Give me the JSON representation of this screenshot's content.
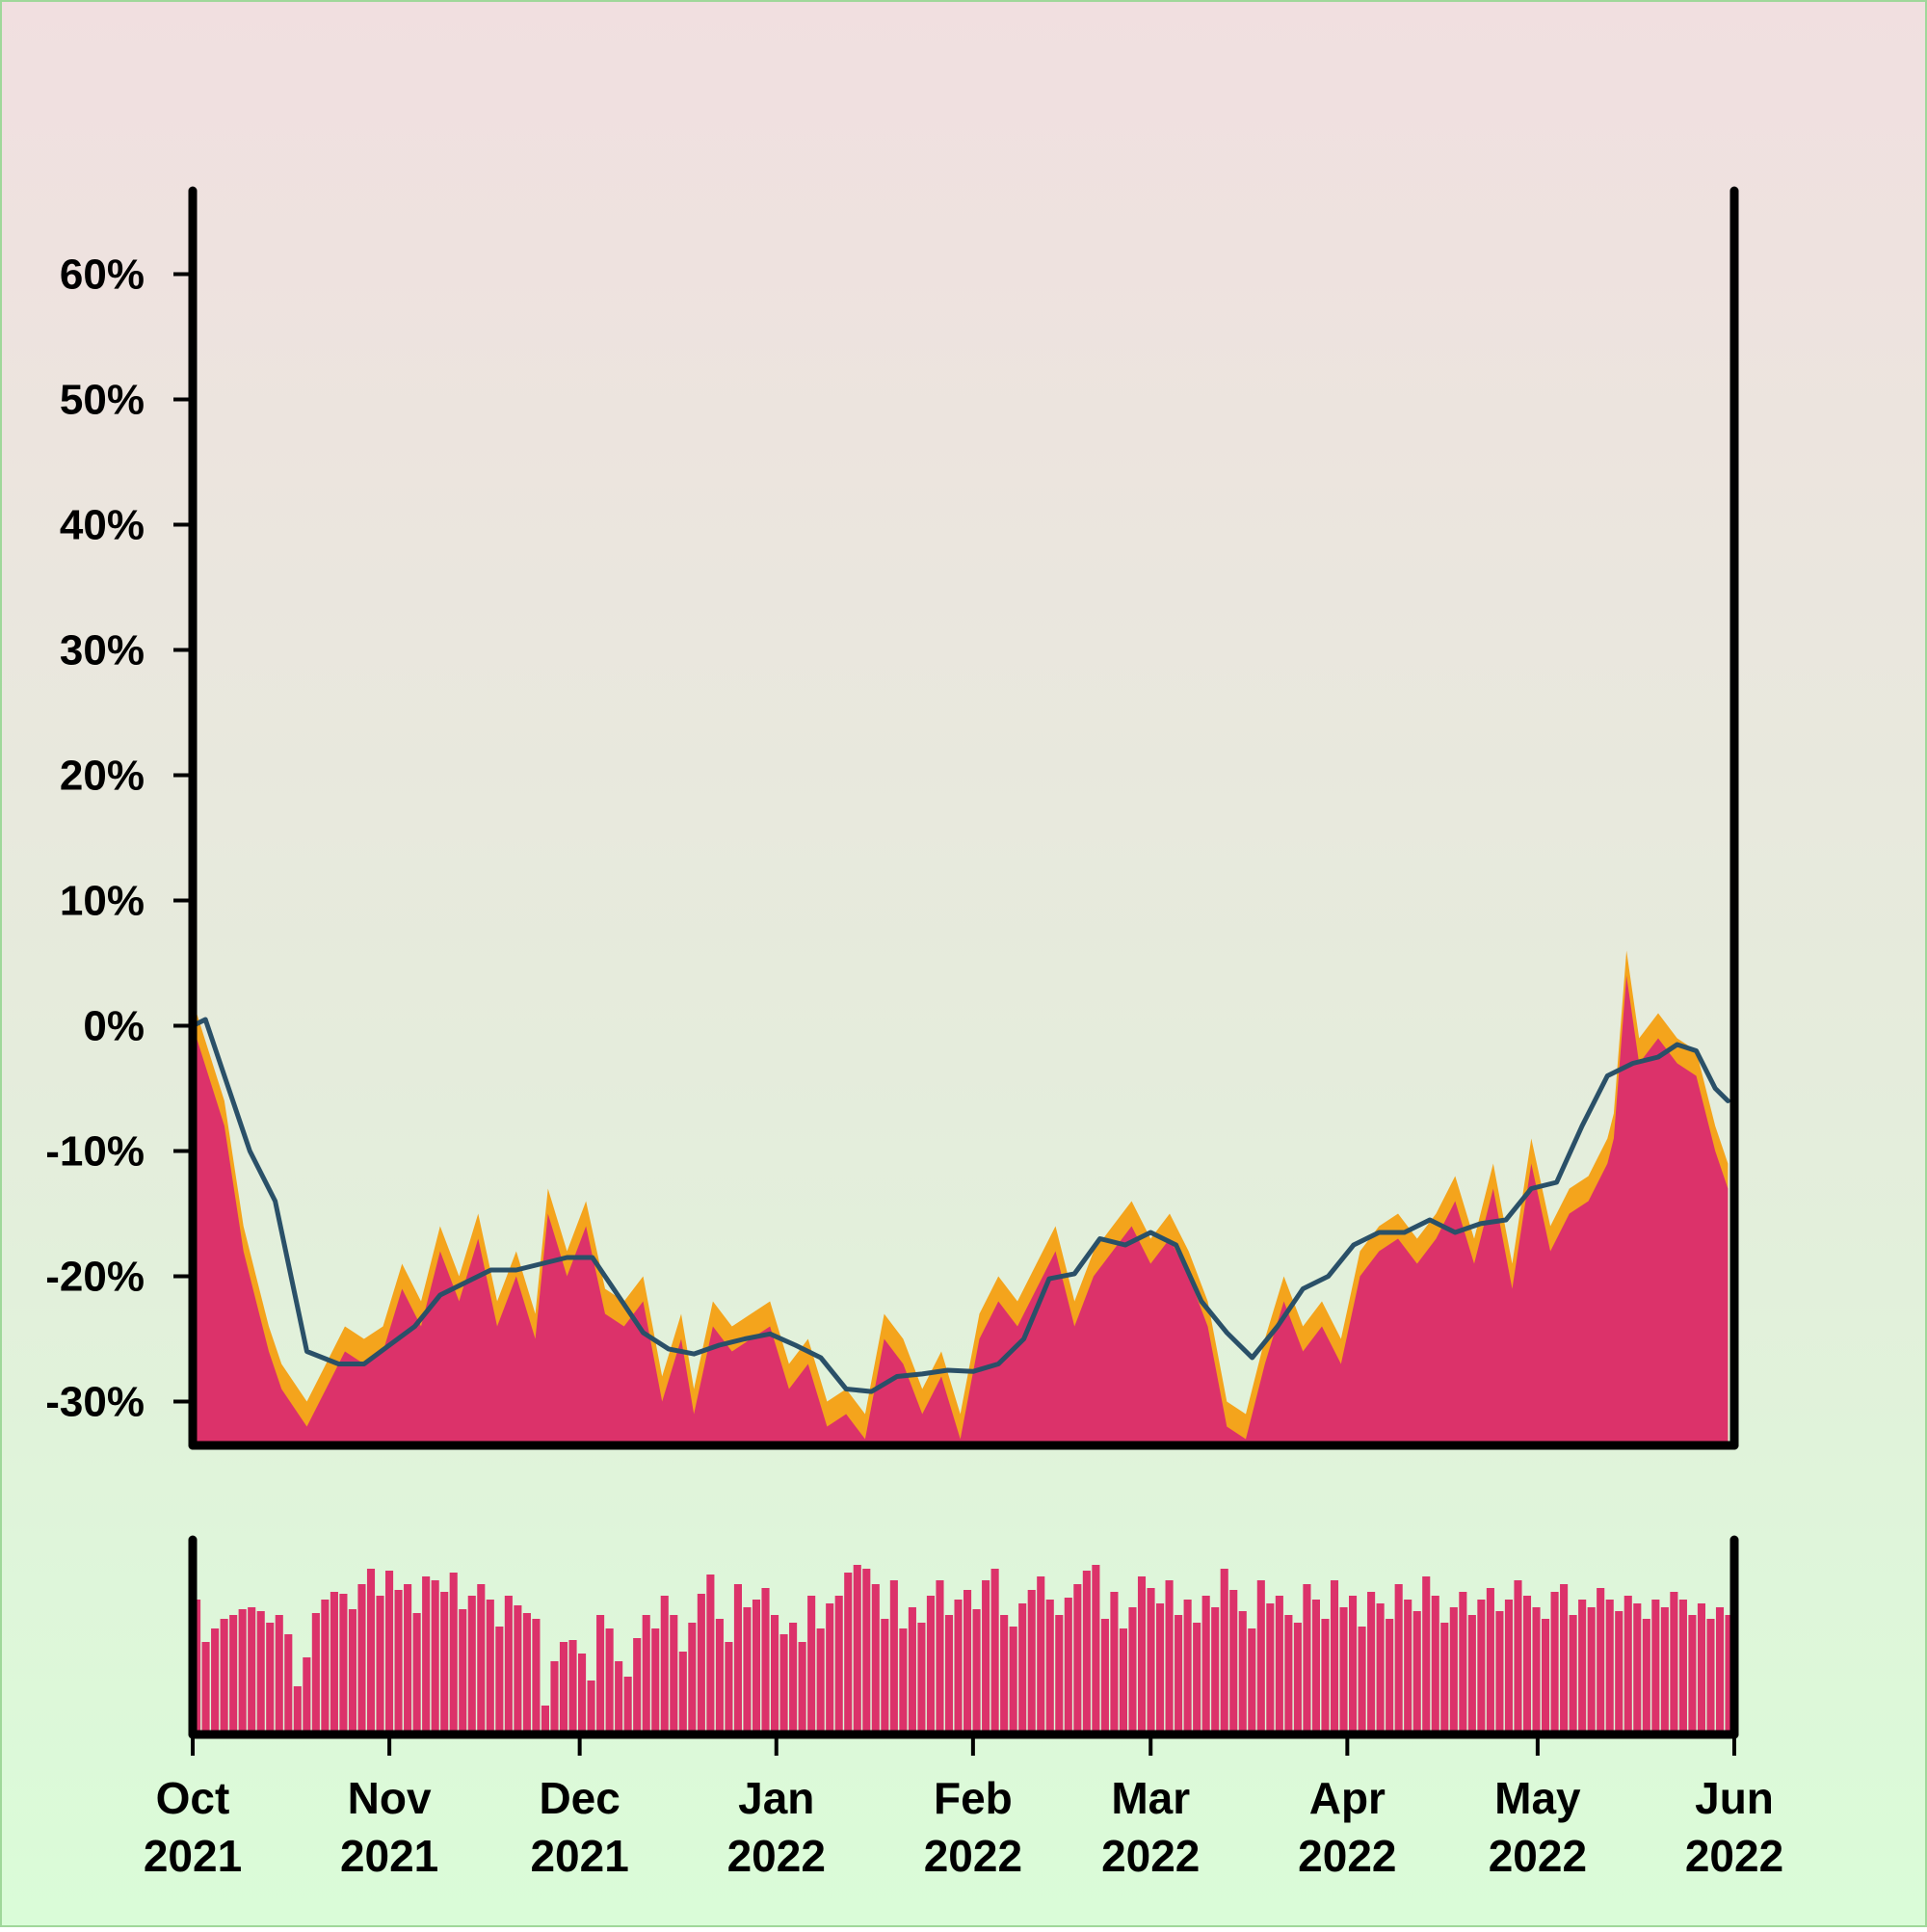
{
  "colors": {
    "fill": "#dc326a",
    "band": "#f4a41c",
    "trend": "#2a5068",
    "axis": "#000000"
  },
  "chart_data": [
    {
      "type": "area",
      "role": "main-price-panel",
      "x_range": [
        "2021-10-01",
        "2022-06-01"
      ],
      "ylim": [
        -33.5,
        66.5
      ],
      "yticks": [
        -30,
        -20,
        -10,
        0,
        10,
        20,
        30,
        40,
        50,
        60
      ],
      "ytick_labels": [
        "-30%",
        "-20%",
        "-10%",
        "0%",
        "10%",
        "20%",
        "30%",
        "40%",
        "50%",
        "60%"
      ],
      "grid": false,
      "series": [
        {
          "kind": "area-with-upper-band",
          "x": [
            "2021-10-01",
            "2021-10-06",
            "2021-10-09",
            "2021-10-11",
            "2021-10-13",
            "2021-10-15",
            "2021-10-19",
            "2021-10-22",
            "2021-10-25",
            "2021-10-28",
            "2021-10-31",
            "2021-11-03",
            "2021-11-06",
            "2021-11-09",
            "2021-11-12",
            "2021-11-15",
            "2021-11-18",
            "2021-11-21",
            "2021-11-24",
            "2021-11-26",
            "2021-11-29",
            "2021-12-02",
            "2021-12-05",
            "2021-12-08",
            "2021-12-11",
            "2021-12-14",
            "2021-12-17",
            "2021-12-19",
            "2021-12-22",
            "2021-12-25",
            "2021-12-28",
            "2021-12-31",
            "2022-01-03",
            "2022-01-06",
            "2022-01-09",
            "2022-01-12",
            "2022-01-15",
            "2022-01-18",
            "2022-01-21",
            "2022-01-24",
            "2022-01-27",
            "2022-01-30",
            "2022-02-02",
            "2022-02-05",
            "2022-02-08",
            "2022-02-11",
            "2022-02-14",
            "2022-02-17",
            "2022-02-20",
            "2022-02-23",
            "2022-02-26",
            "2022-03-01",
            "2022-03-04",
            "2022-03-07",
            "2022-03-10",
            "2022-03-13",
            "2022-03-16",
            "2022-03-19",
            "2022-03-22",
            "2022-03-25",
            "2022-03-28",
            "2022-03-31",
            "2022-04-03",
            "2022-04-06",
            "2022-04-09",
            "2022-04-12",
            "2022-04-15",
            "2022-04-18",
            "2022-04-21",
            "2022-04-24",
            "2022-04-27",
            "2022-04-30",
            "2022-05-03",
            "2022-05-06",
            "2022-05-09",
            "2022-05-12",
            "2022-05-13",
            "2022-05-15",
            "2022-05-17",
            "2022-05-20",
            "2022-05-23",
            "2022-05-26",
            "2022-05-29",
            "2022-05-31"
          ],
          "values": [
            0.0,
            -8.0,
            -18.0,
            -22.0,
            -26.0,
            -29.0,
            -32.0,
            -29.0,
            -26.0,
            -27.0,
            -26.0,
            -21.0,
            -24.0,
            -18.0,
            -22.0,
            -17.0,
            -24.0,
            -20.0,
            -25.0,
            -15.0,
            -20.0,
            -16.0,
            -23.0,
            -24.0,
            -22.0,
            -30.0,
            -25.0,
            -31.0,
            -24.0,
            -26.0,
            -25.0,
            -24.0,
            -29.0,
            -27.0,
            -32.0,
            -31.0,
            -33.0,
            -25.0,
            -27.0,
            -31.0,
            -28.0,
            -33.0,
            -25.0,
            -22.0,
            -24.0,
            -21.0,
            -18.0,
            -24.0,
            -20.0,
            -18.0,
            -16.0,
            -19.0,
            -17.0,
            -20.0,
            -24.0,
            -32.0,
            -33.0,
            -27.0,
            -22.0,
            -26.0,
            -24.0,
            -27.0,
            -20.0,
            -18.0,
            -17.0,
            -19.0,
            -17.0,
            -14.0,
            -19.0,
            -13.0,
            -21.0,
            -11.0,
            -18.0,
            -15.0,
            -14.0,
            -11.0,
            -9.0,
            4.0,
            -3.0,
            -1.0,
            -3.0,
            -4.0,
            -10.0,
            -13.0
          ],
          "band_offset": 2.0
        },
        {
          "kind": "trend-line",
          "x": [
            "2021-10-01",
            "2021-10-03",
            "2021-10-06",
            "2021-10-10",
            "2021-10-14",
            "2021-10-19",
            "2021-10-24",
            "2021-10-28",
            "2021-11-01",
            "2021-11-05",
            "2021-11-09",
            "2021-11-13",
            "2021-11-17",
            "2021-11-21",
            "2021-11-25",
            "2021-11-29",
            "2021-12-03",
            "2021-12-07",
            "2021-12-11",
            "2021-12-15",
            "2021-12-19",
            "2021-12-23",
            "2021-12-27",
            "2021-12-31",
            "2022-01-04",
            "2022-01-08",
            "2022-01-12",
            "2022-01-16",
            "2022-01-20",
            "2022-01-24",
            "2022-01-28",
            "2022-02-01",
            "2022-02-05",
            "2022-02-09",
            "2022-02-13",
            "2022-02-17",
            "2022-02-21",
            "2022-02-25",
            "2022-03-01",
            "2022-03-05",
            "2022-03-09",
            "2022-03-13",
            "2022-03-17",
            "2022-03-21",
            "2022-03-25",
            "2022-03-29",
            "2022-04-02",
            "2022-04-06",
            "2022-04-10",
            "2022-04-14",
            "2022-04-18",
            "2022-04-22",
            "2022-04-26",
            "2022-04-30",
            "2022-05-04",
            "2022-05-08",
            "2022-05-12",
            "2022-05-16",
            "2022-05-20",
            "2022-05-23",
            "2022-05-26",
            "2022-05-29",
            "2022-05-31"
          ],
          "values": [
            0.0,
            0.5,
            -4.0,
            -10.0,
            -14.0,
            -26.0,
            -27.0,
            -27.0,
            -25.5,
            -24.0,
            -21.5,
            -20.5,
            -19.5,
            -19.5,
            -19.0,
            -18.5,
            -18.5,
            -21.5,
            -24.5,
            -25.8,
            -26.2,
            -25.5,
            -25.0,
            -24.6,
            -25.5,
            -26.5,
            -29.0,
            -29.2,
            -28.0,
            -27.8,
            -27.5,
            -27.6,
            -27.0,
            -25.0,
            -20.2,
            -19.8,
            -17.0,
            -17.5,
            -16.5,
            -17.5,
            -22.0,
            -24.5,
            -26.5,
            -24.0,
            -21.0,
            -20.0,
            -17.5,
            -16.5,
            -16.5,
            -15.5,
            -16.5,
            -15.8,
            -15.5,
            -13.0,
            -12.5,
            -8.0,
            -4.0,
            -3.0,
            -2.5,
            -1.5,
            -2.0,
            -5.0,
            -6.0
          ]
        }
      ]
    },
    {
      "type": "bar",
      "role": "volume-panel",
      "x_range": [
        "2021-10-01",
        "2022-06-01"
      ],
      "ylim": [
        0,
        1
      ],
      "y_axis_labels": false,
      "values": [
        0.7,
        0.48,
        0.55,
        0.6,
        0.62,
        0.65,
        0.66,
        0.64,
        0.58,
        0.62,
        0.52,
        0.25,
        0.4,
        0.63,
        0.7,
        0.74,
        0.73,
        0.65,
        0.78,
        0.86,
        0.72,
        0.85,
        0.75,
        0.78,
        0.63,
        0.82,
        0.8,
        0.74,
        0.84,
        0.65,
        0.72,
        0.78,
        0.7,
        0.56,
        0.72,
        0.67,
        0.63,
        0.6,
        0.15,
        0.38,
        0.48,
        0.49,
        0.42,
        0.28,
        0.62,
        0.55,
        0.38,
        0.3,
        0.5,
        0.62,
        0.55,
        0.72,
        0.62,
        0.43,
        0.58,
        0.73,
        0.83,
        0.6,
        0.48,
        0.78,
        0.66,
        0.7,
        0.76,
        0.62,
        0.52,
        0.58,
        0.48,
        0.72,
        0.55,
        0.68,
        0.72,
        0.84,
        0.88,
        0.86,
        0.78,
        0.6,
        0.8,
        0.55,
        0.66,
        0.58,
        0.72,
        0.8,
        0.62,
        0.7,
        0.75,
        0.65,
        0.8,
        0.86,
        0.62,
        0.56,
        0.68,
        0.75,
        0.82,
        0.7,
        0.62,
        0.71,
        0.78,
        0.85,
        0.88,
        0.6,
        0.74,
        0.55,
        0.66,
        0.82,
        0.76,
        0.68,
        0.8,
        0.62,
        0.7,
        0.58,
        0.72,
        0.66,
        0.86,
        0.75,
        0.64,
        0.55,
        0.8,
        0.68,
        0.72,
        0.62,
        0.58,
        0.78,
        0.7,
        0.6,
        0.8,
        0.66,
        0.72,
        0.56,
        0.74,
        0.68,
        0.6,
        0.78,
        0.7,
        0.64,
        0.82,
        0.72,
        0.58,
        0.66,
        0.74,
        0.62,
        0.7,
        0.76,
        0.64,
        0.7,
        0.8,
        0.72,
        0.66,
        0.6,
        0.74,
        0.78,
        0.62,
        0.7,
        0.66,
        0.76,
        0.7,
        0.64,
        0.72,
        0.68,
        0.6,
        0.7,
        0.66,
        0.74,
        0.7,
        0.62,
        0.68,
        0.6,
        0.66,
        0.62
      ]
    }
  ],
  "x_axis": {
    "ticks": [
      "2021-10-01",
      "2021-11-01",
      "2021-12-01",
      "2022-01-01",
      "2022-02-01",
      "2022-03-01",
      "2022-04-01",
      "2022-05-01",
      "2022-06-01"
    ],
    "labels": [
      {
        "month": "Oct",
        "year": "2021"
      },
      {
        "month": "Nov",
        "year": "2021"
      },
      {
        "month": "Dec",
        "year": "2021"
      },
      {
        "month": "Jan",
        "year": "2022"
      },
      {
        "month": "Feb",
        "year": "2022"
      },
      {
        "month": "Mar",
        "year": "2022"
      },
      {
        "month": "Apr",
        "year": "2022"
      },
      {
        "month": "May",
        "year": "2022"
      },
      {
        "month": "Jun",
        "year": "2022"
      }
    ]
  }
}
